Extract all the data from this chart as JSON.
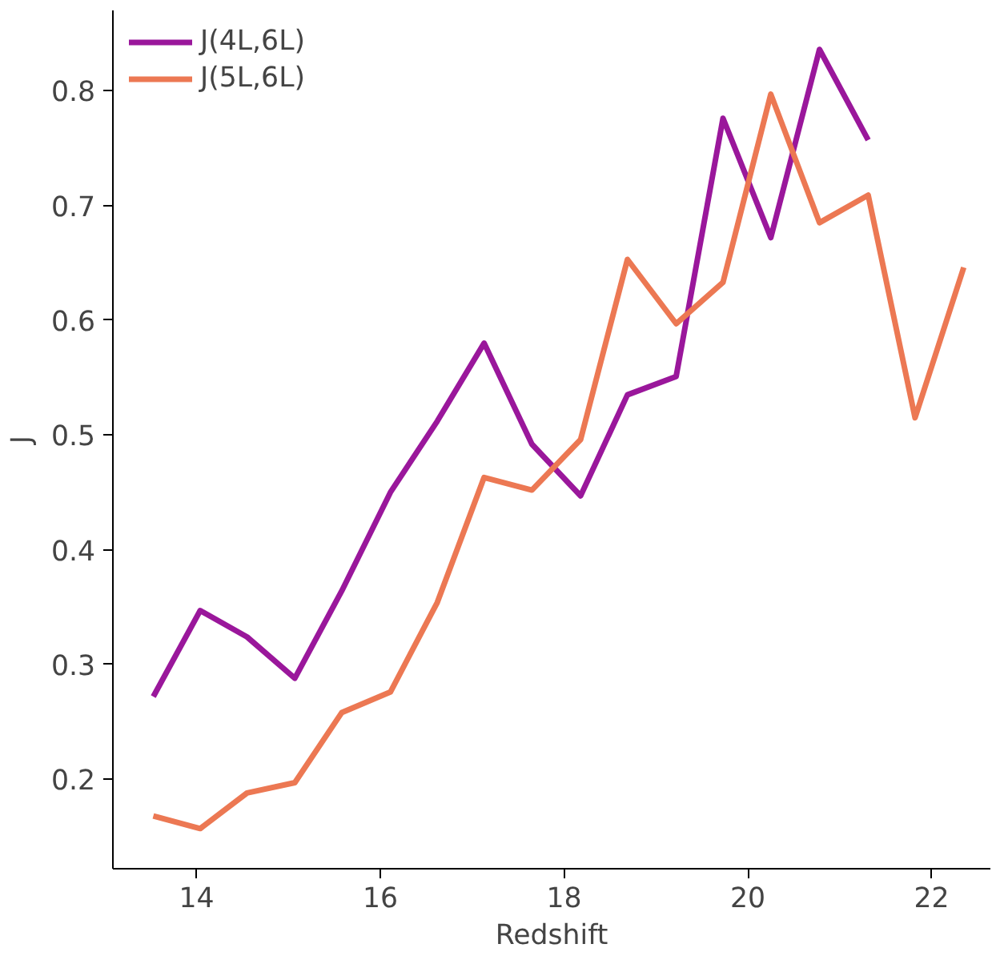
{
  "chart_data": {
    "type": "line",
    "xlabel": "Redshift",
    "ylabel": "J",
    "x": [
      13.53,
      14.04,
      14.55,
      15.07,
      15.58,
      16.11,
      16.62,
      17.13,
      17.65,
      18.18,
      18.69,
      19.22,
      19.73,
      20.25,
      20.78,
      21.31,
      21.82,
      22.35
    ],
    "series": [
      {
        "name": "J(4L,6L)",
        "color": "#9a179b",
        "values": [
          0.272,
          0.347,
          0.324,
          0.288,
          0.364,
          0.45,
          0.512,
          0.58,
          0.492,
          0.447,
          0.535,
          0.551,
          0.776,
          0.672,
          0.836,
          0.757,
          null,
          null
        ]
      },
      {
        "name": "J(5L,6L)",
        "color": "#ec7853",
        "values": [
          0.168,
          0.157,
          0.188,
          0.197,
          0.258,
          0.276,
          0.354,
          0.463,
          0.452,
          0.496,
          0.653,
          0.597,
          0.633,
          0.797,
          0.685,
          0.709,
          0.515,
          0.646
        ]
      }
    ],
    "xlim": [
      13.09,
      22.64
    ],
    "ylim": [
      0.122,
      0.87
    ],
    "xticks": [
      14,
      16,
      18,
      20,
      22
    ],
    "yticks": [
      0.2,
      0.3,
      0.4,
      0.5,
      0.6,
      0.7,
      0.8
    ],
    "grid": false,
    "legend": "top left",
    "line_style": "solid",
    "marker": "none"
  }
}
